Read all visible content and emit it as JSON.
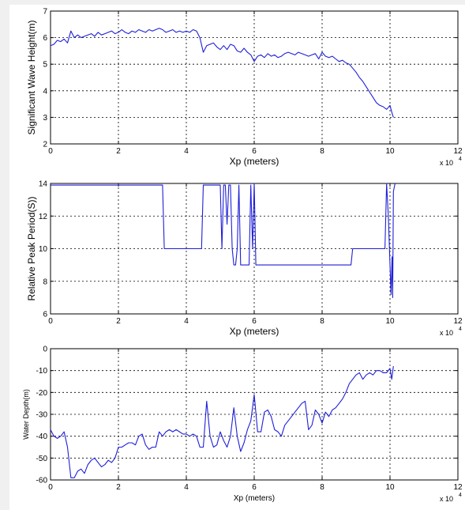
{
  "colors": {
    "line": "#1f1fd9",
    "axis": "#000000",
    "grid": "#000000",
    "background": "#ffffff",
    "frame": "#f0f0f0"
  },
  "chart_data": [
    {
      "type": "line",
      "xlabel": "Xp (meters)",
      "ylabel": "Significant Wave Height(m)",
      "xlim": [
        0,
        120000
      ],
      "ylim": [
        2,
        7
      ],
      "x_ticks": [
        "0",
        "2",
        "4",
        "6",
        "8",
        "10",
        "12"
      ],
      "y_ticks": [
        "2",
        "3",
        "4",
        "5",
        "6",
        "7"
      ],
      "x_multiplier": "x 10",
      "x_multiplier_exp": "4",
      "grid": true,
      "series": [
        {
          "x": [
            0,
            1000,
            2000,
            3000,
            4000,
            5000,
            6000,
            7000,
            8000,
            9000,
            10000,
            11000,
            12000,
            13000,
            14000,
            15000,
            16000,
            17000,
            18000,
            19000,
            20000,
            21000,
            22000,
            23000,
            24000,
            25000,
            26000,
            27000,
            28000,
            29000,
            30000,
            31000,
            32000,
            33000,
            34000,
            35000,
            36000,
            37000,
            38000,
            39000,
            40000,
            41000,
            42000,
            43000,
            44000,
            45000,
            46000,
            47000,
            48000,
            49000,
            50000,
            51000,
            52000,
            53000,
            54000,
            55000,
            56000,
            57000,
            58000,
            59000,
            60000,
            61000,
            62000,
            63000,
            64000,
            65000,
            66000,
            67000,
            68000,
            69000,
            70000,
            71000,
            72000,
            73000,
            74000,
            75000,
            76000,
            77000,
            78000,
            79000,
            80000,
            81000,
            82000,
            83000,
            84000,
            85000,
            86000,
            87000,
            88000,
            89000,
            90000,
            91000,
            92000,
            93000,
            94000,
            95000,
            96000,
            97000,
            98000,
            99000,
            100000,
            100500,
            101000
          ],
          "y": [
            5.7,
            5.75,
            5.9,
            5.85,
            5.95,
            5.8,
            6.25,
            6.0,
            6.1,
            6.0,
            6.05,
            6.1,
            6.15,
            6.05,
            6.2,
            6.1,
            6.15,
            6.2,
            6.25,
            6.15,
            6.2,
            6.3,
            6.2,
            6.15,
            6.25,
            6.2,
            6.3,
            6.25,
            6.2,
            6.3,
            6.25,
            6.3,
            6.35,
            6.3,
            6.2,
            6.25,
            6.3,
            6.2,
            6.25,
            6.2,
            6.25,
            6.2,
            6.3,
            6.25,
            6.0,
            5.45,
            5.7,
            5.75,
            5.8,
            5.65,
            5.55,
            5.7,
            5.55,
            5.75,
            5.7,
            5.5,
            5.45,
            5.6,
            5.45,
            5.35,
            5.1,
            5.3,
            5.35,
            5.25,
            5.4,
            5.3,
            5.35,
            5.25,
            5.3,
            5.4,
            5.45,
            5.4,
            5.35,
            5.45,
            5.4,
            5.35,
            5.3,
            5.35,
            5.4,
            5.2,
            5.45,
            5.3,
            5.25,
            5.3,
            5.2,
            5.1,
            5.15,
            5.05,
            5.0,
            4.85,
            4.7,
            4.5,
            4.35,
            4.15,
            3.95,
            3.75,
            3.55,
            3.45,
            3.4,
            3.3,
            3.45,
            3.2,
            3.0
          ]
        }
      ]
    },
    {
      "type": "line",
      "xlabel": "Xp (meters)",
      "ylabel": "Relative Peak Period(S))",
      "xlim": [
        0,
        120000
      ],
      "ylim": [
        6,
        14
      ],
      "x_ticks": [
        "0",
        "2",
        "4",
        "6",
        "8",
        "10",
        "12"
      ],
      "y_ticks": [
        "6",
        "8",
        "10",
        "12",
        "14"
      ],
      "x_multiplier": "x 10",
      "x_multiplier_exp": "4",
      "grid": true,
      "series": [
        {
          "x": [
            0,
            33000,
            33500,
            34500,
            44500,
            45000,
            50000,
            50500,
            51000,
            51500,
            52000,
            52500,
            53000,
            53500,
            54000,
            54500,
            55000,
            55500,
            56000,
            56500,
            58500,
            59000,
            59500,
            60000,
            60500,
            61000,
            88500,
            89000,
            89500,
            97000,
            98000,
            98500,
            99000,
            99500,
            100000,
            100300,
            100600,
            100800,
            101000,
            101500
          ],
          "y": [
            13.9,
            13.9,
            10.0,
            10.0,
            10.0,
            13.9,
            13.9,
            10.0,
            13.9,
            13.9,
            11.5,
            13.9,
            13.9,
            10.0,
            9.0,
            9.0,
            10.0,
            13.9,
            9.0,
            9.0,
            9.0,
            13.9,
            10.0,
            14.0,
            9.0,
            9.0,
            9.0,
            10.0,
            10.0,
            10.0,
            10.0,
            10.0,
            14.0,
            12.0,
            9.0,
            7.2,
            9.5,
            7.0,
            13.5,
            14.0
          ]
        }
      ]
    },
    {
      "type": "line",
      "xlabel": "Xp (meters)",
      "ylabel": "Water Depth(m)",
      "xlim": [
        0,
        120000
      ],
      "ylim": [
        -60,
        0
      ],
      "x_ticks": [
        "0",
        "2",
        "4",
        "6",
        "8",
        "10",
        "12"
      ],
      "y_ticks": [
        "-60",
        "-50",
        "-40",
        "-30",
        "-20",
        "-10",
        "0"
      ],
      "x_multiplier": "x 10",
      "x_multiplier_exp": "4",
      "grid": true,
      "series": [
        {
          "x": [
            0,
            1000,
            2000,
            3000,
            4000,
            5000,
            6000,
            7000,
            8000,
            9000,
            10000,
            11000,
            12000,
            13000,
            14000,
            15000,
            16000,
            17000,
            18000,
            19000,
            20000,
            21000,
            22000,
            23000,
            24000,
            25000,
            26000,
            27000,
            28000,
            29000,
            30000,
            31000,
            32000,
            33000,
            34000,
            35000,
            36000,
            37000,
            38000,
            39000,
            40000,
            41000,
            42000,
            43000,
            44000,
            45000,
            46000,
            47000,
            48000,
            49000,
            50000,
            51000,
            52000,
            53000,
            54000,
            55000,
            56000,
            57000,
            58000,
            59000,
            60000,
            61000,
            62000,
            63000,
            64000,
            65000,
            66000,
            67000,
            68000,
            69000,
            70000,
            71000,
            72000,
            73000,
            74000,
            75000,
            76000,
            77000,
            78000,
            79000,
            80000,
            81000,
            82000,
            83000,
            84000,
            85000,
            86000,
            87000,
            88000,
            89000,
            90000,
            91000,
            92000,
            93000,
            94000,
            95000,
            96000,
            97000,
            98000,
            99000,
            100000,
            100500,
            101000
          ],
          "y": [
            -37,
            -40,
            -41,
            -40,
            -38,
            -45,
            -59,
            -59,
            -56,
            -55,
            -57,
            -53,
            -51,
            -50,
            -52,
            -54,
            -53,
            -51,
            -52,
            -50,
            -45,
            -45,
            -44,
            -43,
            -43,
            -44,
            -40,
            -39,
            -44,
            -46,
            -45,
            -45,
            -38,
            -40,
            -38,
            -37,
            -38,
            -37,
            -38,
            -39,
            -39,
            -40,
            -39,
            -40,
            -45,
            -45,
            -24,
            -40,
            -45,
            -44,
            -38,
            -42,
            -45,
            -40,
            -27,
            -40,
            -47,
            -43,
            -37,
            -33,
            -21,
            -38,
            -38,
            -29,
            -28,
            -31,
            -37,
            -38,
            -40,
            -35,
            -33,
            -31,
            -29,
            -27,
            -25,
            -24,
            -37,
            -35,
            -28,
            -30,
            -34,
            -29,
            -31,
            -28,
            -27,
            -25,
            -23,
            -20,
            -16,
            -14,
            -12,
            -11,
            -14,
            -12,
            -11,
            -12,
            -10,
            -10,
            -11,
            -11,
            -9,
            -14,
            -8
          ]
        }
      ]
    }
  ]
}
